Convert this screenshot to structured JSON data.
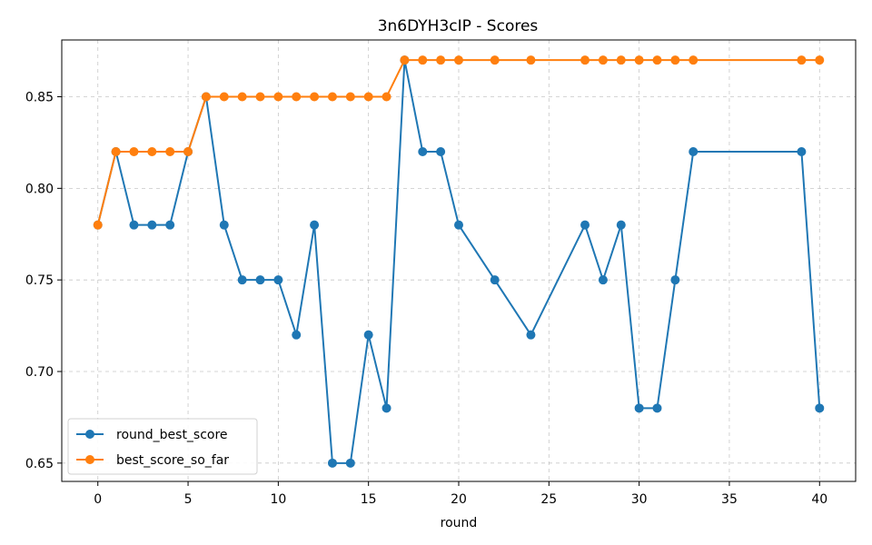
{
  "chart_data": {
    "type": "line",
    "title": "3n6DYH3cIP - Scores",
    "xlabel": "round",
    "ylabel": "",
    "xlim": [
      -2,
      42
    ],
    "ylim": [
      0.64,
      0.881
    ],
    "xticks": [
      0,
      5,
      10,
      15,
      20,
      25,
      30,
      35,
      40
    ],
    "xtick_labels": [
      "0",
      "5",
      "10",
      "15",
      "20",
      "25",
      "30",
      "35",
      "40"
    ],
    "yticks": [
      0.65,
      0.7,
      0.75,
      0.8,
      0.85
    ],
    "ytick_labels": [
      "0.65",
      "0.70",
      "0.75",
      "0.80",
      "0.85"
    ],
    "grid": true,
    "legend_position": "lower-left",
    "series": [
      {
        "name": "round_best_score",
        "color": "#1f77b4",
        "marker": "circle",
        "x": [
          0,
          1,
          2,
          3,
          4,
          5,
          6,
          7,
          8,
          9,
          10,
          11,
          12,
          13,
          14,
          15,
          16,
          17,
          18,
          19,
          20,
          22,
          24,
          27,
          28,
          29,
          30,
          31,
          32,
          33,
          39,
          40
        ],
        "y": [
          0.78,
          0.82,
          0.78,
          0.78,
          0.78,
          0.82,
          0.85,
          0.78,
          0.75,
          0.75,
          0.75,
          0.72,
          0.78,
          0.65,
          0.65,
          0.72,
          0.68,
          0.87,
          0.82,
          0.82,
          0.78,
          0.75,
          0.72,
          0.78,
          0.75,
          0.78,
          0.68,
          0.68,
          0.75,
          0.82,
          0.82,
          0.68
        ]
      },
      {
        "name": "best_score_so_far",
        "color": "#ff7f0e",
        "marker": "circle",
        "x": [
          0,
          1,
          2,
          3,
          4,
          5,
          6,
          7,
          8,
          9,
          10,
          11,
          12,
          13,
          14,
          15,
          16,
          17,
          18,
          19,
          20,
          22,
          24,
          27,
          28,
          29,
          30,
          31,
          32,
          33,
          39,
          40
        ],
        "y": [
          0.78,
          0.82,
          0.82,
          0.82,
          0.82,
          0.82,
          0.85,
          0.85,
          0.85,
          0.85,
          0.85,
          0.85,
          0.85,
          0.85,
          0.85,
          0.85,
          0.85,
          0.87,
          0.87,
          0.87,
          0.87,
          0.87,
          0.87,
          0.87,
          0.87,
          0.87,
          0.87,
          0.87,
          0.87,
          0.87,
          0.87,
          0.87
        ]
      }
    ]
  }
}
